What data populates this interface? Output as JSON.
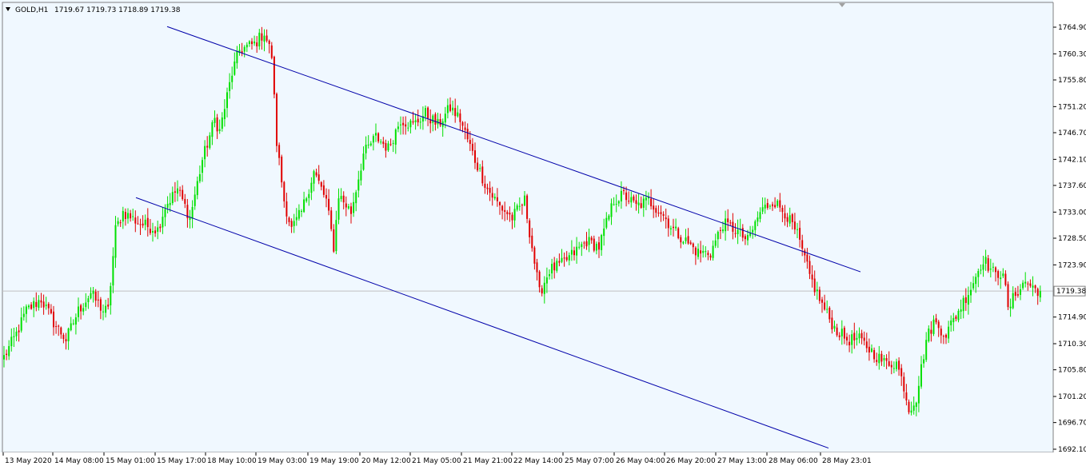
{
  "header": {
    "symbol": "GOLD,H1",
    "ohlc": "1719.67 1719.73 1718.89 1719.38"
  },
  "chart_data": {
    "type": "candlestick",
    "symbol": "GOLD",
    "timeframe": "H1",
    "ylim": [
      1692.1,
      1767.0
    ],
    "y_ticks": [
      "1764.90",
      "1760.30",
      "1755.80",
      "1751.20",
      "1746.70",
      "1742.10",
      "1737.60",
      "1733.00",
      "1728.50",
      "1723.90",
      "1719.38",
      "1714.90",
      "1710.30",
      "1705.80",
      "1701.20",
      "1696.70",
      "1692.10"
    ],
    "x_ticks": [
      "13 May 2020",
      "14 May 08:00",
      "15 May 01:00",
      "15 May 17:00",
      "18 May 10:00",
      "19 May 03:00",
      "19 May 19:00",
      "20 May 12:00",
      "21 May 05:00",
      "21 May 21:00",
      "22 May 14:00",
      "25 May 07:00",
      "26 May 04:00",
      "26 May 20:00",
      "27 May 13:00",
      "28 May 06:00",
      "28 May 23:01"
    ],
    "current_price": 1719.38,
    "current_price_label": "1719.38",
    "colors": {
      "bull": "#00e000",
      "bear": "#e00000",
      "channel": "#0000aa",
      "grid": "#c0c0c0",
      "background": "#f0f8ff"
    },
    "channel_upper": {
      "start_price": 1765.0,
      "end_price": 1722.7
    },
    "channel_lower": {
      "start_price": 1735.5,
      "end_price": 1692.3
    },
    "anchors": [
      [
        0,
        1708
      ],
      [
        5,
        1712
      ],
      [
        9,
        1716
      ],
      [
        15,
        1718
      ],
      [
        20,
        1714
      ],
      [
        25,
        1711
      ],
      [
        30,
        1716
      ],
      [
        35,
        1719
      ],
      [
        40,
        1716
      ],
      [
        42,
        1716
      ],
      [
        45,
        1730
      ],
      [
        48,
        1733
      ],
      [
        55,
        1731
      ],
      [
        62,
        1730
      ],
      [
        65,
        1734
      ],
      [
        70,
        1737
      ],
      [
        75,
        1732
      ],
      [
        80,
        1742
      ],
      [
        85,
        1749
      ],
      [
        87,
        1747
      ],
      [
        92,
        1757
      ],
      [
        95,
        1761
      ],
      [
        101,
        1762
      ],
      [
        105,
        1764
      ],
      [
        108,
        1760
      ],
      [
        110,
        1745
      ],
      [
        113,
        1735
      ],
      [
        116,
        1730
      ],
      [
        120,
        1733
      ],
      [
        125,
        1740
      ],
      [
        130,
        1735
      ],
      [
        133,
        1727
      ],
      [
        135,
        1736
      ],
      [
        140,
        1733
      ],
      [
        145,
        1743
      ],
      [
        150,
        1746
      ],
      [
        155,
        1744
      ],
      [
        160,
        1749
      ],
      [
        165,
        1748
      ],
      [
        170,
        1750
      ],
      [
        175,
        1748
      ],
      [
        180,
        1751
      ],
      [
        184,
        1749
      ],
      [
        190,
        1742
      ],
      [
        195,
        1737
      ],
      [
        200,
        1734
      ],
      [
        205,
        1732
      ],
      [
        210,
        1735
      ],
      [
        213,
        1727
      ],
      [
        216,
        1719
      ],
      [
        220,
        1723
      ],
      [
        225,
        1724
      ],
      [
        230,
        1726
      ],
      [
        235,
        1728
      ],
      [
        240,
        1727
      ],
      [
        243,
        1731
      ],
      [
        246,
        1735
      ],
      [
        250,
        1736
      ],
      [
        255,
        1734
      ],
      [
        260,
        1735
      ],
      [
        265,
        1733
      ],
      [
        270,
        1730
      ],
      [
        275,
        1728
      ],
      [
        280,
        1726
      ],
      [
        285,
        1726
      ],
      [
        290,
        1731
      ],
      [
        295,
        1730
      ],
      [
        300,
        1728
      ],
      [
        305,
        1733
      ],
      [
        310,
        1735
      ],
      [
        315,
        1733
      ],
      [
        320,
        1729
      ],
      [
        325,
        1722
      ],
      [
        330,
        1717
      ],
      [
        335,
        1713
      ],
      [
        340,
        1711
      ],
      [
        345,
        1711
      ],
      [
        350,
        1709
      ],
      [
        355,
        1707
      ],
      [
        360,
        1707
      ],
      [
        363,
        1703
      ],
      [
        365,
        1699
      ],
      [
        368,
        1701
      ],
      [
        372,
        1711
      ],
      [
        375,
        1714
      ],
      [
        380,
        1712
      ],
      [
        385,
        1716
      ],
      [
        390,
        1720
      ],
      [
        395,
        1725
      ],
      [
        400,
        1722
      ],
      [
        403,
        1723
      ],
      [
        405,
        1716
      ],
      [
        408,
        1719
      ],
      [
        412,
        1721
      ],
      [
        415,
        1720
      ],
      [
        418,
        1719.38
      ]
    ]
  }
}
